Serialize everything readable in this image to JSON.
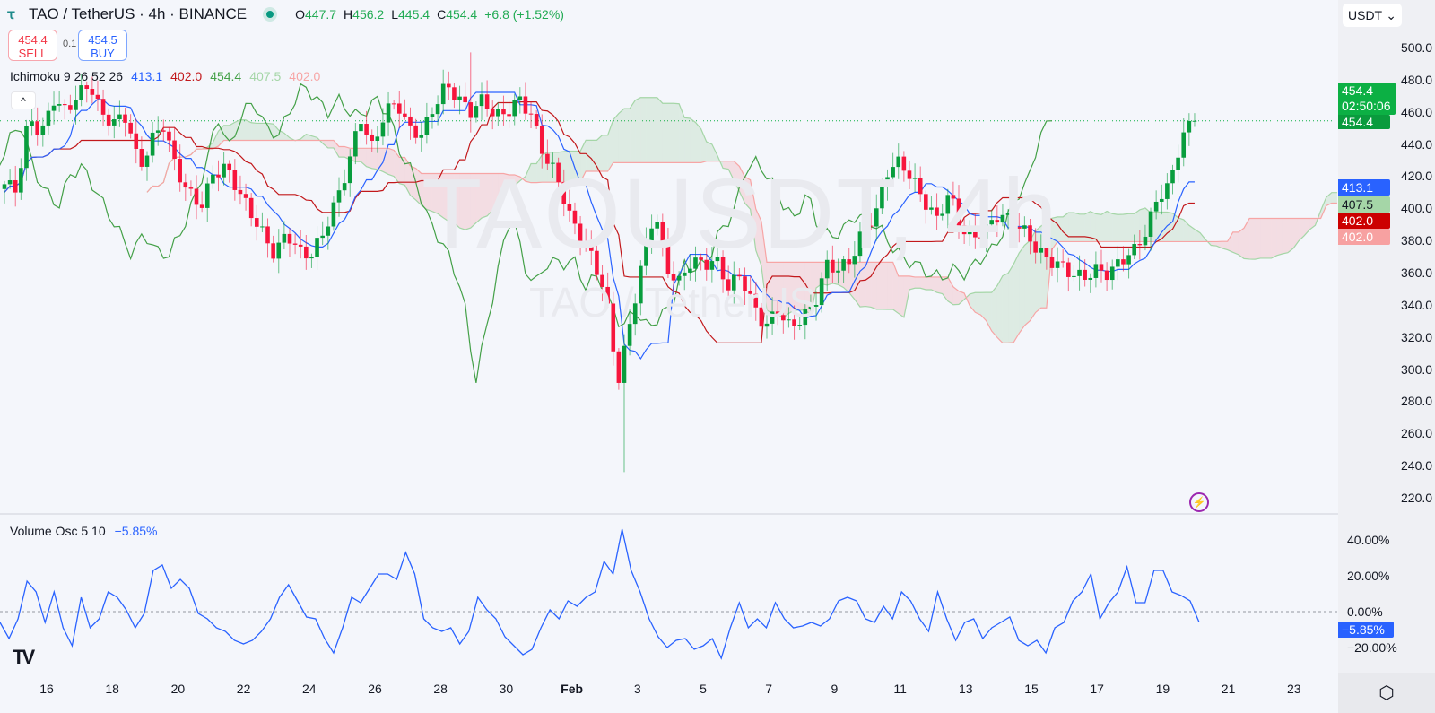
{
  "header": {
    "symbol": "TAO / TetherUS · 4h · BINANCE",
    "o_label": "O",
    "o": "447.7",
    "h_label": "H",
    "h": "456.2",
    "l_label": "L",
    "l": "445.4",
    "c_label": "C",
    "c": "454.4",
    "change": "+6.8 (+1.52%)"
  },
  "trade": {
    "sell_price": "454.4",
    "sell_label": "SELL",
    "qty": "0.1",
    "buy_price": "454.5",
    "buy_label": "BUY"
  },
  "indicator": {
    "name": "Ichimoku 9 26 52 26",
    "tenkan": "413.1",
    "kijun": "402.0",
    "chikou": "454.4",
    "span_a": "407.5",
    "span_b": "402.0",
    "collapse": "^"
  },
  "volume_osc": {
    "name": "Volume Osc 5 10",
    "value": "−5.85%"
  },
  "currency": "USDT",
  "watermark": {
    "big": "TAOUSDT, 4h",
    "small": "TAO / TetherUS"
  },
  "tags": {
    "last_price": "454.4",
    "countdown": "02:50:06",
    "chikou": "454.4",
    "tenkan": "413.1",
    "span_a": "407.5",
    "kijun": "402.0",
    "span_b": "402.0",
    "vol": "−5.85%"
  },
  "colors": {
    "up": "#089d3d",
    "down": "#f7163d",
    "tenkan": "#2962ff",
    "kijun": "#c2181b",
    "chikou": "#43a047",
    "span_a": "#a5d6a7",
    "span_b": "#f7a5a5",
    "vol": "#2962ff"
  },
  "chart_data": [
    {
      "type": "candlestick",
      "title": "TAO / TetherUS · 4h · BINANCE",
      "ylim": [
        210,
        510
      ],
      "price_ticks": [
        "500.0",
        "480.0",
        "460.0",
        "440.0",
        "420.0",
        "400.0",
        "380.0",
        "360.0",
        "340.0",
        "320.0",
        "300.0",
        "280.0",
        "260.0",
        "240.0",
        "220.0"
      ],
      "x_ticks": [
        {
          "label": "16",
          "day": 1
        },
        {
          "label": "18",
          "day": 3
        },
        {
          "label": "20",
          "day": 5
        },
        {
          "label": "22",
          "day": 7
        },
        {
          "label": "24",
          "day": 9
        },
        {
          "label": "26",
          "day": 11
        },
        {
          "label": "28",
          "day": 13
        },
        {
          "label": "30",
          "day": 15
        },
        {
          "label": "Feb",
          "day": 17
        },
        {
          "label": "3",
          "day": 19
        },
        {
          "label": "5",
          "day": 21
        },
        {
          "label": "7",
          "day": 23
        },
        {
          "label": "9",
          "day": 25
        },
        {
          "label": "11",
          "day": 27
        },
        {
          "label": "13",
          "day": 29
        },
        {
          "label": "15",
          "day": 31
        },
        {
          "label": "17",
          "day": 33
        },
        {
          "label": "19",
          "day": 35
        },
        {
          "label": "21",
          "day": 37
        },
        {
          "label": "23",
          "day": 39
        }
      ],
      "close_samples": [
        415,
        412,
        457,
        446,
        468,
        460,
        471,
        477,
        457,
        454,
        457,
        424,
        443,
        452,
        424,
        410,
        401,
        421,
        426,
        412,
        398,
        385,
        371,
        385,
        373,
        371,
        385,
        404,
        426,
        457,
        437,
        460,
        466,
        449,
        446,
        463,
        477,
        468,
        460,
        468,
        457,
        460,
        468,
        457,
        432,
        421,
        396,
        382,
        368,
        346,
        292,
        329,
        368,
        399,
        362,
        354,
        368,
        365,
        368,
        351,
        359,
        340,
        326,
        337,
        326,
        332,
        340,
        365,
        362,
        368,
        387,
        396,
        424,
        429,
        418,
        404,
        393,
        410,
        387,
        382,
        387,
        396,
        393,
        387,
        376,
        368,
        365,
        359,
        357,
        362,
        359,
        368,
        373,
        385,
        407,
        415,
        446,
        454.4
      ],
      "extremes": {
        "high": 497,
        "low": 236
      },
      "last_close": 454.4
    },
    {
      "type": "line",
      "title": "Volume Osc 5 10",
      "ylim": [
        -30,
        50
      ],
      "ticks": [
        "40.00%",
        "20.00%",
        "0.00%",
        "−20.00%"
      ],
      "tick_values": [
        40,
        20,
        0,
        -20
      ],
      "values": [
        -6,
        -15,
        -4,
        17,
        11,
        -6,
        11,
        -9,
        -19,
        8,
        -9,
        -4,
        11,
        8,
        1,
        -9,
        -1,
        23,
        26,
        13,
        18,
        13,
        -1,
        -4,
        -9,
        -11,
        -16,
        -18,
        -16,
        -11,
        -4,
        8,
        15,
        6,
        -3,
        -4,
        -15,
        -23,
        -9,
        8,
        5,
        13,
        21,
        21,
        18,
        33,
        21,
        -4,
        -9,
        -11,
        -9,
        -18,
        -11,
        8,
        1,
        -4,
        -14,
        -19,
        -24,
        -21,
        -9,
        1,
        -4,
        6,
        3,
        8,
        11,
        28,
        21,
        46,
        23,
        11,
        -4,
        -14,
        -20,
        -16,
        -15,
        -21,
        -19,
        -15,
        -26,
        -9,
        5,
        -9,
        -4,
        -9,
        5,
        -4,
        -9,
        -8,
        -6,
        -8,
        -4,
        6,
        8,
        6,
        -4,
        -6,
        3,
        -4,
        11,
        6,
        -4,
        -11,
        11,
        -4,
        -16,
        -6,
        -4,
        -15,
        -9,
        -6,
        -3,
        -16,
        -19,
        -16,
        -23,
        -9,
        -6,
        6,
        11,
        21,
        -4,
        5,
        11,
        25,
        5,
        5,
        23,
        23,
        11,
        9,
        6,
        -5.85
      ]
    }
  ]
}
